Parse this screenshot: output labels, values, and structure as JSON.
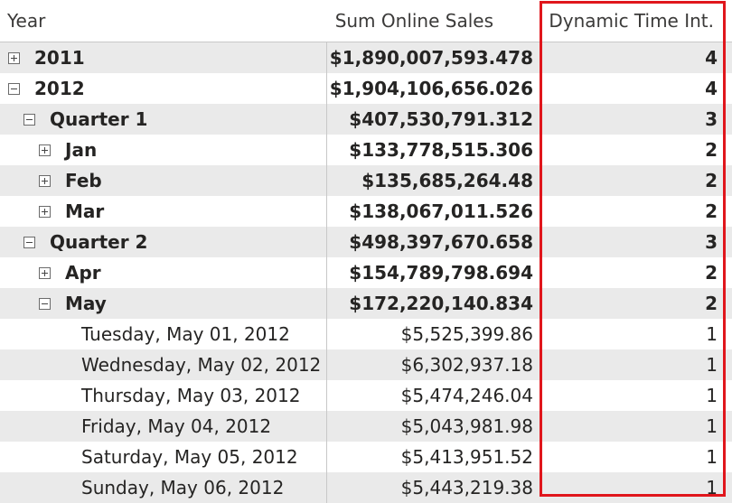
{
  "headers": {
    "year": "Year",
    "sales": "Sum Online Sales",
    "dynamic": "Dynamic Time Int."
  },
  "colors": {
    "highlight": "#e0161c",
    "shaded_row": "#eaeaea"
  },
  "rows": [
    {
      "label": "2011",
      "sales": "$1,890,007,593.478",
      "dynamic": "4",
      "toggle": "expand-icon"
    },
    {
      "label": "2012",
      "sales": "$1,904,106,656.026",
      "dynamic": "4",
      "toggle": "collapse-icon"
    },
    {
      "label": "Quarter 1",
      "sales": "$407,530,791.312",
      "dynamic": "3",
      "toggle": "collapse-icon"
    },
    {
      "label": "Jan",
      "sales": "$133,778,515.306",
      "dynamic": "2",
      "toggle": "expand-icon"
    },
    {
      "label": "Feb",
      "sales": "$135,685,264.48",
      "dynamic": "2",
      "toggle": "expand-icon"
    },
    {
      "label": "Mar",
      "sales": "$138,067,011.526",
      "dynamic": "2",
      "toggle": "expand-icon"
    },
    {
      "label": "Quarter 2",
      "sales": "$498,397,670.658",
      "dynamic": "3",
      "toggle": "collapse-icon"
    },
    {
      "label": "Apr",
      "sales": "$154,789,798.694",
      "dynamic": "2",
      "toggle": "expand-icon"
    },
    {
      "label": "May",
      "sales": "$172,220,140.834",
      "dynamic": "2",
      "toggle": "collapse-icon"
    },
    {
      "label": "Tuesday, May 01, 2012",
      "sales": "$5,525,399.86",
      "dynamic": "1"
    },
    {
      "label": "Wednesday, May 02, 2012",
      "sales": "$6,302,937.18",
      "dynamic": "1"
    },
    {
      "label": "Thursday, May 03, 2012",
      "sales": "$5,474,246.04",
      "dynamic": "1"
    },
    {
      "label": "Friday, May 04, 2012",
      "sales": "$5,043,981.98",
      "dynamic": "1"
    },
    {
      "label": "Saturday, May 05, 2012",
      "sales": "$5,413,951.52",
      "dynamic": "1"
    },
    {
      "label": "Sunday, May 06, 2012",
      "sales": "$5,443,219.38",
      "dynamic": "1"
    }
  ]
}
